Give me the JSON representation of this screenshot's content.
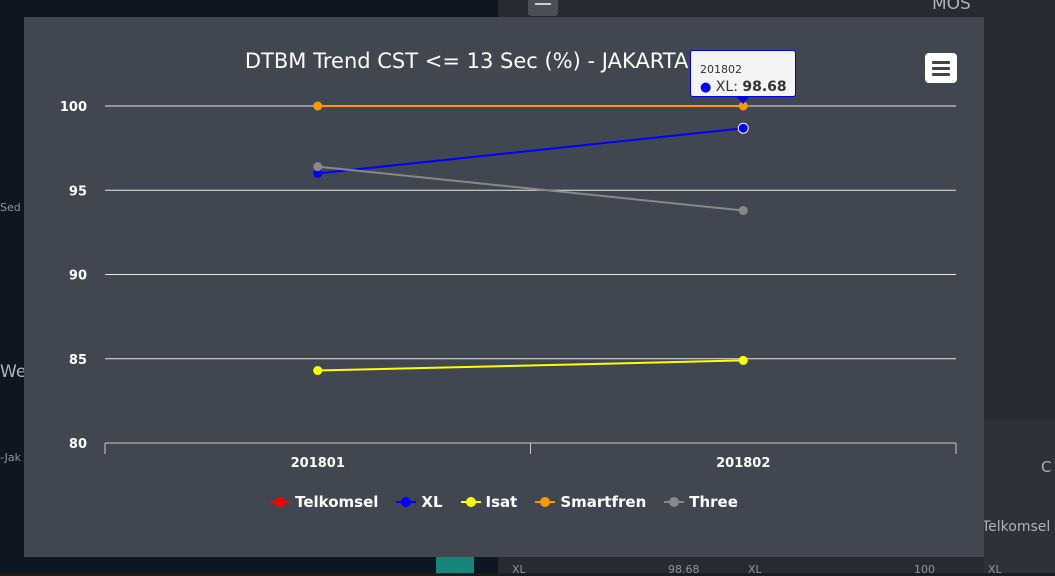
{
  "background": {
    "map_labels": [
      "Sed",
      "We",
      "-Jak"
    ],
    "right_header": "MOS",
    "right_partial": "C",
    "right_label": "Telkomsel",
    "bottom_values": [
      "XL",
      "98.68",
      "XL",
      "100",
      "XL"
    ]
  },
  "chart_data": {
    "type": "line",
    "title": "DTBM Trend CST <= 13 Sec (%) - JAKARTA BARAT",
    "categories": [
      "201801",
      "201802"
    ],
    "xlabel": "",
    "ylabel": "",
    "ylim": [
      80,
      100
    ],
    "yticks": [
      80,
      85,
      90,
      95,
      100
    ],
    "grid": true,
    "legend_position": "bottom",
    "series": [
      {
        "name": "Telkomsel",
        "color": "#ff0000",
        "values": [
          null,
          null
        ]
      },
      {
        "name": "XL",
        "color": "#0000ff",
        "values": [
          96.0,
          98.68
        ]
      },
      {
        "name": "Isat",
        "color": "#ffff00",
        "values": [
          84.3,
          84.9
        ]
      },
      {
        "name": "Smartfren",
        "color": "#ff9900",
        "values": [
          100,
          100
        ]
      },
      {
        "name": "Three",
        "color": "#888888",
        "values": [
          96.4,
          93.8
        ]
      }
    ],
    "tooltip": {
      "category": "201802",
      "series": "XL",
      "value": "98.68"
    }
  },
  "icons": {
    "menu": "hamburger-menu-icon"
  }
}
